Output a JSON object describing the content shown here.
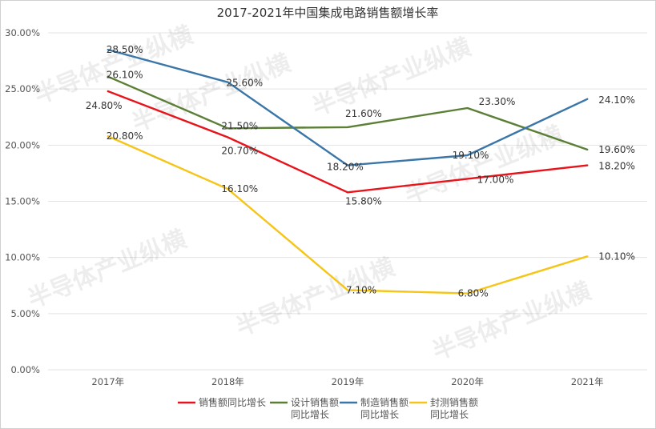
{
  "chart_data": {
    "type": "line",
    "title": "2017-2021年中国集成电路销售额增长率",
    "categories": [
      "2017年",
      "2018年",
      "2019年",
      "2020年",
      "2021年"
    ],
    "y_ticks": [
      "0.00%",
      "5.00%",
      "10.00%",
      "15.00%",
      "20.00%",
      "25.00%",
      "30.00%"
    ],
    "ylim": [
      0,
      30
    ],
    "grid": true,
    "legend_position": "bottom",
    "series": [
      {
        "name": "销售额同比增长",
        "legend_lines": [
          "销售额同比增长"
        ],
        "color": "#e8141c",
        "values": [
          24.8,
          20.7,
          15.8,
          17.0,
          18.2
        ],
        "labels": [
          "24.80%",
          "20.70%",
          "15.80%",
          "17.00%",
          "18.20%"
        ]
      },
      {
        "name": "设计销售额同比增长",
        "legend_lines": [
          "设计销售额",
          "同比增长"
        ],
        "color": "#5a7f35",
        "values": [
          26.1,
          21.5,
          21.6,
          23.3,
          19.6
        ],
        "labels": [
          "26.10%",
          "21.50%",
          "21.60%",
          "23.30%",
          "19.60%"
        ]
      },
      {
        "name": "制造销售额同比增长",
        "legend_lines": [
          "制造销售额",
          "同比增长"
        ],
        "color": "#3a76a8",
        "values": [
          28.5,
          25.6,
          18.2,
          19.1,
          24.1
        ],
        "labels": [
          "28.50%",
          "25.60%",
          "18.20%",
          "19.10%",
          "24.10%"
        ]
      },
      {
        "name": "封测销售额同比增长",
        "legend_lines": [
          "封测销售额",
          "同比增长"
        ],
        "color": "#f5c518",
        "values": [
          20.8,
          16.1,
          7.1,
          6.8,
          10.1
        ],
        "labels": [
          "20.80%",
          "16.10%",
          "7.10%",
          "6.80%",
          "10.10%"
        ]
      }
    ]
  },
  "watermark": "半导体产业纵横"
}
